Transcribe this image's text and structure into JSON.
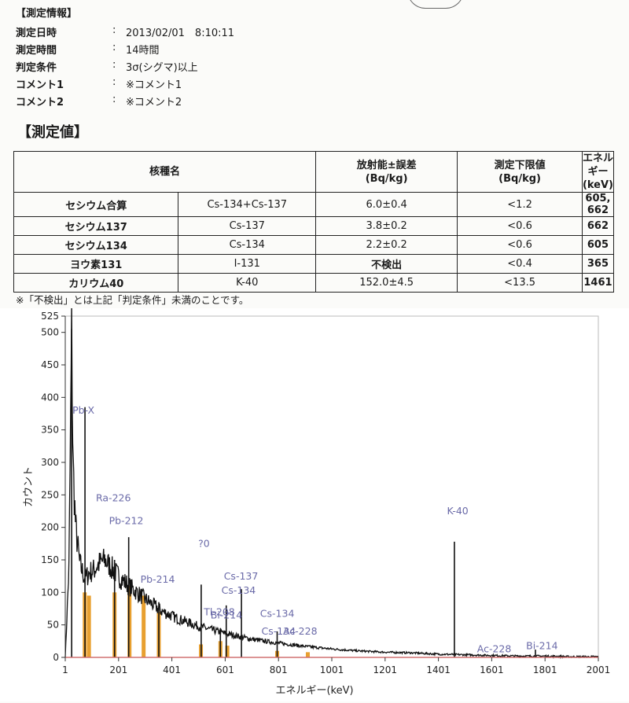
{
  "info": {
    "header": "【測定情報】",
    "rows": [
      {
        "label": "測定日時",
        "colon": ":",
        "value": "2013/02/01　8:10:11"
      },
      {
        "label": "測定時間",
        "colon": ":",
        "value": "14時間"
      },
      {
        "label": "判定条件",
        "colon": ":",
        "value": "3σ(シグマ)以上"
      },
      {
        "label": "コメント1",
        "colon": ":",
        "value": "※コメント1"
      },
      {
        "label": "コメント2",
        "colon": ":",
        "value": "※コメント2"
      }
    ]
  },
  "measurement": {
    "header": "【測定値】",
    "columns": {
      "nuclide": "核種名",
      "activity": "放射能±誤差",
      "activity_unit": "(Bq/kg)",
      "limit": "測定下限値",
      "limit_unit": "(Bq/kg)",
      "energy": "エネルギー",
      "energy_unit": "(keV)"
    },
    "rows": [
      {
        "name": "セシウム合算",
        "code": "Cs-134+Cs-137",
        "activity": "6.0±0.4",
        "limit": "<1.2",
        "energy": "605, 662"
      },
      {
        "name": "セシウム137",
        "code": "Cs-137",
        "activity": "3.8±0.2",
        "limit": "<0.6",
        "energy": "662"
      },
      {
        "name": "セシウム134",
        "code": "Cs-134",
        "activity": "2.2±0.2",
        "limit": "<0.6",
        "energy": "605"
      },
      {
        "name": "ヨウ素131",
        "code": "I-131",
        "activity": "不検出",
        "limit": "<0.4",
        "energy": "365"
      },
      {
        "name": "カリウム40",
        "code": "K-40",
        "activity": "152.0±4.5",
        "limit": "<13.5",
        "energy": "1461"
      }
    ],
    "note": "※「不検出」とは上記「判定条件」未満のことです。"
  },
  "chart_data": {
    "type": "line",
    "title": "",
    "xlabel": "エネルギー(keV)",
    "ylabel": "カウント",
    "xlim": [
      1,
      2001
    ],
    "ylim": [
      0,
      525
    ],
    "x_ticks": [
      "1",
      "201",
      "401",
      "601",
      "801",
      "1001",
      "1201",
      "1401",
      "1601",
      "1801",
      "2001"
    ],
    "y_ticks": [
      "0",
      "50",
      "100",
      "150",
      "200",
      "250",
      "300",
      "350",
      "400",
      "450",
      "500",
      "525"
    ],
    "spectrum_envelope": [
      [
        1,
        0
      ],
      [
        15,
        140
      ],
      [
        25,
        505
      ],
      [
        30,
        300
      ],
      [
        40,
        200
      ],
      [
        55,
        145
      ],
      [
        75,
        120
      ],
      [
        90,
        130
      ],
      [
        110,
        135
      ],
      [
        130,
        145
      ],
      [
        150,
        150
      ],
      [
        170,
        140
      ],
      [
        200,
        125
      ],
      [
        240,
        110
      ],
      [
        300,
        90
      ],
      [
        360,
        72
      ],
      [
        420,
        60
      ],
      [
        500,
        48
      ],
      [
        600,
        37
      ],
      [
        700,
        28
      ],
      [
        800,
        22
      ],
      [
        900,
        17
      ],
      [
        1000,
        13
      ],
      [
        1100,
        10
      ],
      [
        1200,
        8
      ],
      [
        1300,
        7
      ],
      [
        1400,
        5
      ],
      [
        1500,
        4
      ],
      [
        1600,
        3
      ],
      [
        1700,
        2
      ],
      [
        1800,
        2
      ],
      [
        1900,
        1
      ],
      [
        2001,
        1
      ]
    ],
    "peaks": [
      {
        "energy": 25,
        "count": 505
      },
      {
        "energy": 75,
        "count": 385
      },
      {
        "energy": 186,
        "count": 150
      },
      {
        "energy": 239,
        "count": 185
      },
      {
        "energy": 352,
        "count": 85
      },
      {
        "energy": 511,
        "count": 112
      },
      {
        "energy": 583,
        "count": 45
      },
      {
        "energy": 605,
        "count": 80
      },
      {
        "energy": 662,
        "count": 105
      },
      {
        "energy": 796,
        "count": 40
      },
      {
        "energy": 1461,
        "count": 178
      },
      {
        "energy": 1765,
        "count": 12
      }
    ],
    "highlight_bands": [
      {
        "energy": 74,
        "count": 100
      },
      {
        "energy": 90,
        "count": 95
      },
      {
        "energy": 186,
        "count": 100
      },
      {
        "energy": 242,
        "count": 110
      },
      {
        "energy": 295,
        "count": 95
      },
      {
        "energy": 352,
        "count": 70
      },
      {
        "energy": 510,
        "count": 20
      },
      {
        "energy": 583,
        "count": 25
      },
      {
        "energy": 609,
        "count": 18
      },
      {
        "energy": 796,
        "count": 10
      },
      {
        "energy": 911,
        "count": 8
      }
    ],
    "annotations": [
      {
        "label": "Pb-X",
        "energy": 28,
        "count": 375
      },
      {
        "label": "Ra-226",
        "energy": 116,
        "count": 240
      },
      {
        "label": "Pb-212",
        "energy": 165,
        "count": 205
      },
      {
        "label": "?0",
        "energy": 500,
        "count": 170
      },
      {
        "label": "Pb-214",
        "energy": 283,
        "count": 115
      },
      {
        "label": "Cs-137",
        "energy": 596,
        "count": 120
      },
      {
        "label": "Cs-134",
        "energy": 587,
        "count": 98
      },
      {
        "label": "Tl-208",
        "energy": 521,
        "count": 65
      },
      {
        "label": "Bi-214",
        "energy": 546,
        "count": 60
      },
      {
        "label": "Cs-134",
        "energy": 732,
        "count": 62
      },
      {
        "label": "Cs-134",
        "energy": 737,
        "count": 35
      },
      {
        "label": "Ac-228",
        "energy": 818,
        "count": 35
      },
      {
        "label": "K-40",
        "energy": 1433,
        "count": 220
      },
      {
        "label": "Ac-228",
        "energy": 1546,
        "count": 8
      },
      {
        "label": "Bi-214",
        "energy": 1730,
        "count": 13
      }
    ],
    "colors": {
      "spectrum": "#111111",
      "highlight": "#e8a030",
      "label": "#6a6aa8",
      "baseline": "#d07070"
    }
  }
}
